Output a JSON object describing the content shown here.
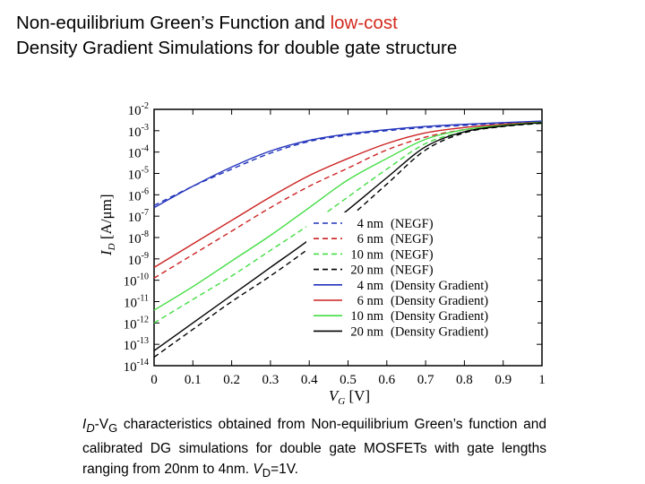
{
  "title": {
    "line1_prefix": "Non-equilibrium Green’s Function and ",
    "line1_highlight": "low-cost",
    "line2": "Density Gradient Simulations for double gate structure",
    "highlight_color": "#d42a1e"
  },
  "chart_data": {
    "type": "line",
    "xlabel_main": "V",
    "xlabel_sub": "G",
    "xlabel_unit": " [V]",
    "ylabel_main": "I",
    "ylabel_sub": "D",
    "ylabel_unit": " [A/μm]",
    "xlim": [
      0,
      1
    ],
    "ylim_log10": [
      -14,
      -2
    ],
    "y_scale": "log",
    "x_ticks": [
      "0",
      "0.1",
      "0.2",
      "0.3",
      "0.4",
      "0.5",
      "0.6",
      "0.7",
      "0.8",
      "0.9",
      "1"
    ],
    "y_tick_exponents": [
      "-2",
      "-3",
      "-4",
      "-5",
      "-6",
      "-7",
      "-8",
      "-9",
      "-10",
      "-11",
      "-12",
      "-13",
      "-14"
    ],
    "y_tick_base": "10",
    "x": [
      0,
      0.1,
      0.2,
      0.3,
      0.4,
      0.5,
      0.6,
      0.7,
      0.8,
      0.9,
      1.0
    ],
    "legend_position": "bottom-right",
    "series": [
      {
        "name": "4 nm",
        "tag": "(NEGF)",
        "color": "#2233bb",
        "dash": true,
        "log_values": [
          -6.5,
          -5.6,
          -4.8,
          -4.05,
          -3.5,
          -3.2,
          -3.0,
          -2.85,
          -2.75,
          -2.65,
          -2.6
        ]
      },
      {
        "name": "6 nm",
        "tag": "(NEGF)",
        "color": "#cc2222",
        "dash": true,
        "log_values": [
          -9.9,
          -8.8,
          -7.7,
          -6.6,
          -5.6,
          -4.75,
          -3.9,
          -3.3,
          -2.95,
          -2.75,
          -2.6
        ]
      },
      {
        "name": "10 nm",
        "tag": "(NEGF)",
        "color": "#44dd44",
        "dash": true,
        "log_values": [
          -12.0,
          -10.9,
          -9.8,
          -8.6,
          -7.4,
          -6.1,
          -4.8,
          -3.6,
          -3.05,
          -2.8,
          -2.65
        ]
      },
      {
        "name": "20 nm",
        "tag": "(NEGF)",
        "color": "#000000",
        "dash": true,
        "log_values": [
          -13.6,
          -12.3,
          -11.0,
          -9.8,
          -8.5,
          -7.1,
          -5.5,
          -3.9,
          -3.1,
          -2.8,
          -2.65
        ]
      },
      {
        "name": "4 nm",
        "tag": "(Density Gradient)",
        "color": "#2233bb",
        "dash": false,
        "log_values": [
          -6.6,
          -5.6,
          -4.7,
          -3.95,
          -3.45,
          -3.15,
          -2.95,
          -2.8,
          -2.7,
          -2.62,
          -2.55
        ]
      },
      {
        "name": "6 nm",
        "tag": "(Density Gradient)",
        "color": "#cc2222",
        "dash": false,
        "log_values": [
          -9.4,
          -8.3,
          -7.2,
          -6.1,
          -5.1,
          -4.3,
          -3.6,
          -3.1,
          -2.85,
          -2.7,
          -2.6
        ]
      },
      {
        "name": "10 nm",
        "tag": "(Density Gradient)",
        "color": "#44dd44",
        "dash": false,
        "log_values": [
          -11.4,
          -10.3,
          -9.1,
          -7.9,
          -6.6,
          -5.3,
          -4.3,
          -3.4,
          -2.95,
          -2.75,
          -2.6
        ]
      },
      {
        "name": "20 nm",
        "tag": "(Density Gradient)",
        "color": "#000000",
        "dash": false,
        "log_values": [
          -13.3,
          -12.0,
          -10.7,
          -9.4,
          -8.1,
          -6.7,
          -5.2,
          -3.75,
          -3.05,
          -2.78,
          -2.62
        ]
      }
    ]
  },
  "caption": {
    "id_main": "I",
    "id_sub": "D",
    "dash": "-V",
    "vg_sub": "G",
    "text": " characteristics obtained from Non-equilibrium Green’s function and calibrated DG simulations for double gate MOSFETs with gate lengths ranging from 20nm to 4nm. ",
    "vd_main": "V",
    "vd_sub": "D",
    "vd_value": "=1V."
  }
}
